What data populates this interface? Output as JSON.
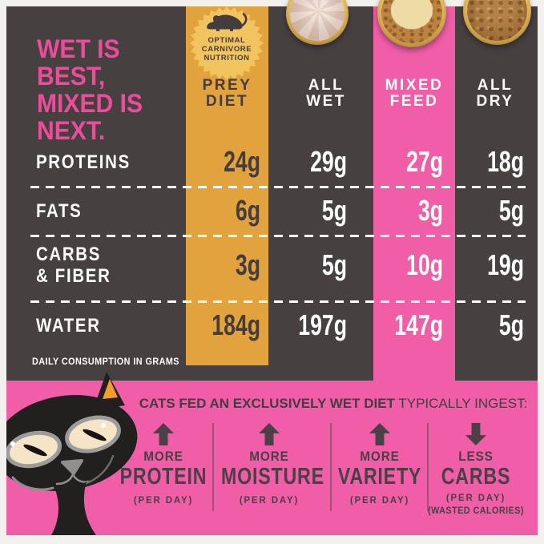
{
  "headline": {
    "lines": [
      "WET IS",
      "BEST,",
      "MIXED IS",
      "NEXT."
    ]
  },
  "badge": {
    "icon": "mouse-icon",
    "lines": [
      "OPTIMAL",
      "CARNIVORE",
      "NUTRITION"
    ]
  },
  "table": {
    "columns": [
      {
        "id": "prey",
        "line1": "PREY",
        "line2": "DIET",
        "style": "gold"
      },
      {
        "id": "wet",
        "line1": "ALL",
        "line2": "WET",
        "style": "dark"
      },
      {
        "id": "mixed",
        "line1": "MIXED",
        "line2": "FEED",
        "style": "pink"
      },
      {
        "id": "dry",
        "line1": "ALL",
        "line2": "DRY",
        "style": "dark"
      }
    ],
    "rows": [
      {
        "label_lines": [
          "PROTEINS"
        ],
        "values": [
          "24g",
          "29g",
          "27g",
          "18g"
        ]
      },
      {
        "label_lines": [
          "FATS"
        ],
        "values": [
          "6g",
          "5g",
          "3g",
          "5g"
        ]
      },
      {
        "label_lines": [
          "CARBS",
          "& FIBER"
        ],
        "values": [
          "3g",
          "5g",
          "10g",
          "19g"
        ]
      },
      {
        "label_lines": [
          "WATER"
        ],
        "values": [
          "184g",
          "197g",
          "147g",
          "5g"
        ]
      }
    ],
    "footnote": "DAILY CONSUMPTION IN GRAMS"
  },
  "bottom": {
    "header_bold": "CATS FED AN EXCLUSIVELY WET DIET",
    "header_regular": " TYPICALLY INGEST:",
    "benefits": [
      {
        "direction": "up",
        "qualifier": "MORE",
        "word": "PROTEIN",
        "sub": "(PER DAY)"
      },
      {
        "direction": "up",
        "qualifier": "MORE",
        "word": "MOISTURE",
        "sub": "(PER DAY)"
      },
      {
        "direction": "up",
        "qualifier": "MORE",
        "word": "VARIETY",
        "sub": "(PER DAY)"
      },
      {
        "direction": "down",
        "qualifier": "LESS",
        "word": "CARBS",
        "sub": "(PER DAY)",
        "sub2": "(WASTED CALORIES)"
      }
    ]
  },
  "images": [
    "wet-food-bowl",
    "mixed-food-bowl",
    "dry-food-bowl",
    "black-cat-illustration"
  ],
  "colors": {
    "background_dark": "#474041",
    "pink": "#ef5ea7",
    "headline_pink": "#ec4c9b",
    "gold_column": "#e2a23d",
    "badge_gold": "#f2c45f",
    "dark_text": "#433d3d",
    "bottom_text": "#4a4046",
    "white": "#ffffff"
  },
  "chart_data": {
    "type": "table",
    "title": "WET IS BEST, MIXED IS NEXT.",
    "categories": [
      "PREY DIET",
      "ALL WET",
      "MIXED FEED",
      "ALL DRY"
    ],
    "rows": [
      "PROTEINS",
      "FATS",
      "CARBS & FIBER",
      "WATER"
    ],
    "series": [
      {
        "name": "PREY DIET",
        "values": [
          24,
          6,
          3,
          184
        ]
      },
      {
        "name": "ALL WET",
        "values": [
          29,
          5,
          5,
          197
        ]
      },
      {
        "name": "MIXED FEED",
        "values": [
          27,
          3,
          10,
          147
        ]
      },
      {
        "name": "ALL DRY",
        "values": [
          18,
          5,
          19,
          5
        ]
      }
    ],
    "unit": "g",
    "note": "DAILY CONSUMPTION IN GRAMS",
    "legend_position": "top",
    "grid": false
  }
}
